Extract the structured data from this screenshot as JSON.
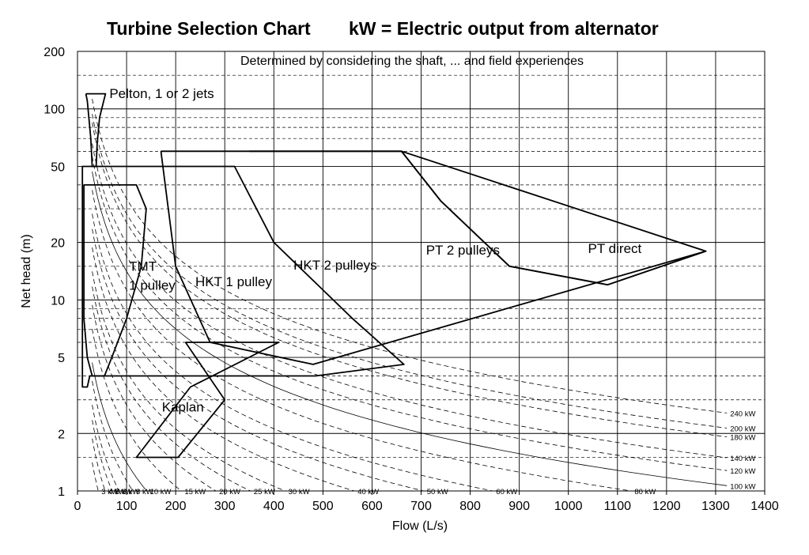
{
  "chart_data": {
    "type": "line",
    "title_main": "Turbine Selection Chart",
    "title_kw": "kW  = Electric output from alternator",
    "subtitle": "Determined by considering the shaft, ... and field experiences",
    "xlabel": "Flow (L/s)",
    "ylabel": "Net head (m)",
    "xlim": [
      0,
      1400
    ],
    "ylim": [
      1,
      200
    ],
    "yscale": "log",
    "x_ticks": [
      "0",
      "100",
      "200",
      "300",
      "400",
      "500",
      "600",
      "700",
      "800",
      "900",
      "1000",
      "1100",
      "1200",
      "1300",
      "1400"
    ],
    "y_major_ticks": [
      {
        "value": 1,
        "label": "1"
      },
      {
        "value": 2,
        "label": "2"
      },
      {
        "value": 5,
        "label": "5"
      },
      {
        "value": 10,
        "label": "10"
      },
      {
        "value": 20,
        "label": "20"
      },
      {
        "value": 50,
        "label": "50"
      },
      {
        "value": 100,
        "label": "100"
      },
      {
        "value": 200,
        "label": "200"
      }
    ],
    "y_minor_grid": [
      1.5,
      3,
      4,
      6,
      7,
      8,
      9,
      15,
      30,
      40,
      60,
      70,
      80,
      90,
      150
    ],
    "grid": true,
    "power_lines": [
      {
        "kw": 1,
        "label": "1 kW",
        "dashed": false
      },
      {
        "kw": 2,
        "label": "2 kW",
        "dashed": true
      },
      {
        "kw": 3,
        "label": "3 kW",
        "dashed": true
      },
      {
        "kw": 4,
        "label": "4 kW",
        "dashed": true
      },
      {
        "kw": 5,
        "label": "5 kW",
        "dashed": true
      },
      {
        "kw": 6,
        "label": "6 kW",
        "dashed": true
      },
      {
        "kw": 8,
        "label": "8 kW",
        "dashed": true
      },
      {
        "kw": 10,
        "label": "10 kW",
        "dashed": false
      },
      {
        "kw": 15,
        "label": "15 kW",
        "dashed": true
      },
      {
        "kw": 20,
        "label": "20 kW",
        "dashed": true
      },
      {
        "kw": 25,
        "label": "25 kW",
        "dashed": true
      },
      {
        "kw": 30,
        "label": "30 kW",
        "dashed": true
      },
      {
        "kw": 40,
        "label": "40 kW",
        "dashed": true
      },
      {
        "kw": 50,
        "label": "50 kW",
        "dashed": true
      },
      {
        "kw": 60,
        "label": "60 kW",
        "dashed": true
      },
      {
        "kw": 80,
        "label": "80 kW",
        "dashed": true
      },
      {
        "kw": 100,
        "label": "100 kW",
        "dashed": false
      },
      {
        "kw": 120,
        "label": "120 kW",
        "dashed": true
      },
      {
        "kw": 140,
        "label": "140 kW",
        "dashed": true
      },
      {
        "kw": 180,
        "label": "180 kW",
        "dashed": true
      },
      {
        "kw": 200,
        "label": "200 kW",
        "dashed": true
      },
      {
        "kw": 240,
        "label": "240 kW",
        "dashed": true
      }
    ],
    "regions": [
      {
        "name": "Pelton, 1 or 2 jets",
        "outline": [
          [
            17,
            120
          ],
          [
            57,
            120
          ],
          [
            45,
            90
          ],
          [
            40,
            65
          ],
          [
            38,
            50
          ],
          [
            30,
            50
          ],
          [
            27,
            70
          ],
          [
            20,
            110
          ],
          [
            17,
            120
          ]
        ]
      },
      {
        "name": "TMT 1 pulley",
        "outline": [
          [
            13,
            40
          ],
          [
            120,
            40
          ],
          [
            140,
            30
          ],
          [
            130,
            15
          ],
          [
            100,
            8
          ],
          [
            70,
            5
          ],
          [
            55,
            4
          ],
          [
            30,
            4
          ],
          [
            20,
            5
          ],
          [
            13,
            8
          ],
          [
            13,
            40
          ]
        ]
      },
      {
        "name": "Kaplan",
        "outline": [
          [
            220,
            6
          ],
          [
            410,
            6
          ],
          [
            230,
            3.5
          ],
          [
            120,
            1.5
          ],
          [
            205,
            1.5
          ],
          [
            300,
            3
          ],
          [
            220,
            6
          ]
        ]
      },
      {
        "name": "HKT 1 pulley",
        "outline": [
          [
            105,
            50
          ],
          [
            320,
            50
          ],
          [
            400,
            20
          ],
          [
            560,
            8
          ],
          [
            665,
            4.6
          ],
          [
            485,
            4
          ],
          [
            25,
            4
          ],
          [
            20,
            3.5
          ],
          [
            10,
            3.5
          ],
          [
            10,
            50
          ],
          [
            105,
            50
          ]
        ]
      },
      {
        "name": "HKT 2 pulleys",
        "outline": [
          [
            170,
            60
          ],
          [
            660,
            60
          ],
          [
            740,
            33
          ],
          [
            880,
            15
          ],
          [
            1080,
            12
          ],
          [
            1280,
            18
          ],
          [
            480,
            4.6
          ],
          [
            270,
            6
          ],
          [
            200,
            15
          ],
          [
            170,
            60
          ]
        ]
      },
      {
        "name": "PT 2 pulleys",
        "outline": [
          [
            350,
            60
          ],
          [
            660,
            60
          ],
          [
            740,
            33
          ],
          [
            880,
            15
          ],
          [
            1080,
            12
          ]
        ]
      },
      {
        "name": "PT direct",
        "outline": [
          [
            660,
            60
          ],
          [
            1280,
            18
          ],
          [
            1080,
            12
          ]
        ]
      }
    ],
    "region_labels": [
      {
        "text": "Pelton, 1 or 2 jets",
        "x": 65,
        "y": 114
      },
      {
        "text": "TMT",
        "x": 105,
        "y": 14.2
      },
      {
        "text": "1 pulley",
        "x": 105,
        "y": 11.3
      },
      {
        "text": "HKT 1 pulley",
        "x": 240,
        "y": 11.8
      },
      {
        "text": "HKT 2 pulleys",
        "x": 440,
        "y": 14.4
      },
      {
        "text": "PT 2 pulleys",
        "x": 710,
        "y": 17.3
      },
      {
        "text": "PT direct",
        "x": 1040,
        "y": 17.6
      },
      {
        "text": "Kaplan",
        "x": 172,
        "y": 2.6
      }
    ]
  }
}
